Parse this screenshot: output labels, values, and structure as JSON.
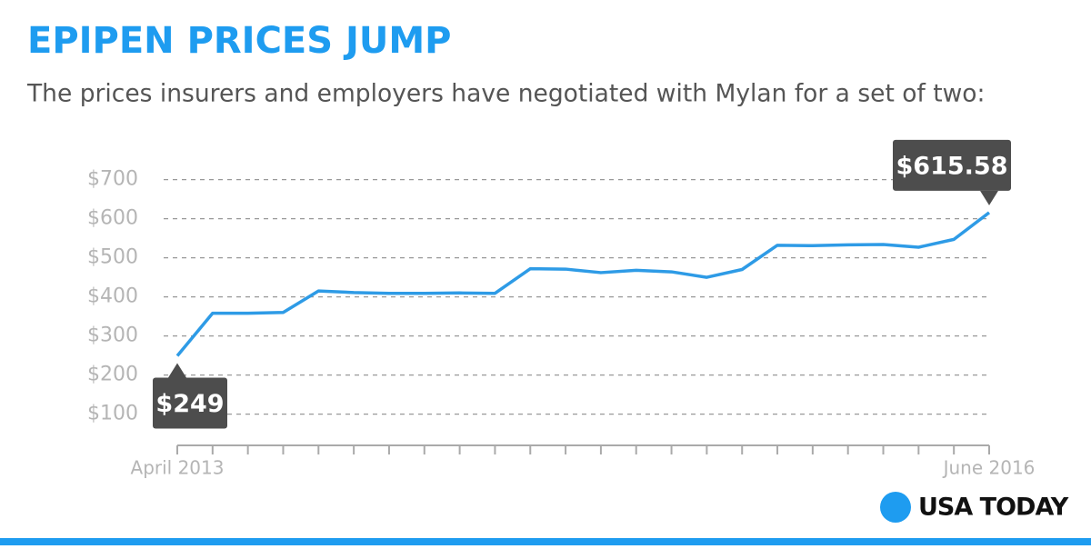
{
  "chart_data": {
    "type": "line",
    "title": "EPIPEN PRICES JUMP",
    "subtitle": "The prices insurers and employers have negotiated with Mylan for a set of two:",
    "source": "USA TODAY",
    "categories": [
      "April 2013",
      null,
      null,
      null,
      null,
      null,
      null,
      null,
      null,
      null,
      null,
      null,
      null,
      null,
      null,
      null,
      null,
      null,
      null,
      null,
      null,
      null,
      null,
      "June 2016"
    ],
    "series": [
      {
        "color": "#2e9be6",
        "values": [
          249,
          358,
          358,
          360,
          415,
          411,
          409,
          409,
          410,
          409,
          472,
          471,
          462,
          468,
          464,
          450,
          470,
          532,
          531,
          533,
          534,
          527,
          547,
          615.58
        ],
        "value_labels": [
          "$249",
          null,
          null,
          null,
          null,
          null,
          null,
          null,
          null,
          null,
          null,
          null,
          null,
          null,
          null,
          null,
          null,
          null,
          null,
          null,
          null,
          null,
          null,
          "$615.58"
        ]
      }
    ],
    "ylim": [
      20,
      720
    ],
    "yticks": [
      {
        "value": 100,
        "label": "$100"
      },
      {
        "value": 200,
        "label": "$200"
      },
      {
        "value": 300,
        "label": "$300"
      },
      {
        "value": 400,
        "label": "$400"
      },
      {
        "value": 500,
        "label": "$500"
      },
      {
        "value": 600,
        "label": "$600"
      },
      {
        "value": 700,
        "label": "$700"
      }
    ],
    "grid": true
  }
}
